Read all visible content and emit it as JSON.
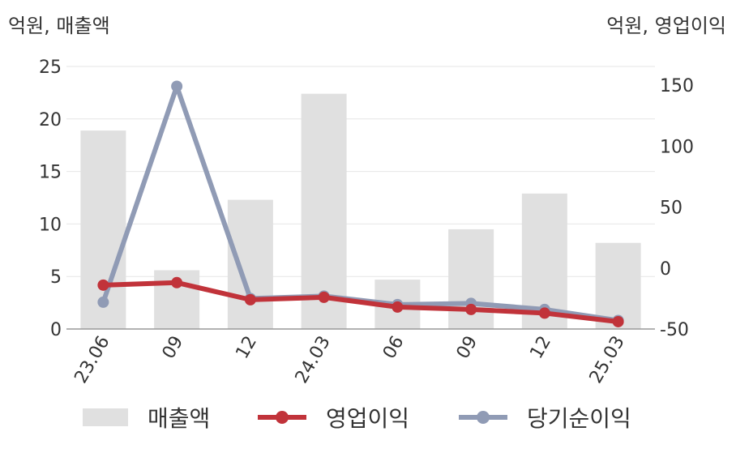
{
  "chart_data": {
    "type": "bar+line",
    "y_left_label": "억원, 매출액",
    "y_right_label": "억원, 영업이익",
    "categories": [
      "23.06",
      "09",
      "12",
      "24.03",
      "06",
      "09",
      "12",
      "25.03"
    ],
    "left_axis": {
      "ylim": [
        0,
        25
      ],
      "ticks": [
        "0",
        "5",
        "10",
        "15",
        "20",
        "25"
      ]
    },
    "right_axis": {
      "ylim": [
        -50,
        150
      ],
      "ticks": [
        "-50",
        "0",
        "50",
        "100",
        "150"
      ]
    },
    "series": [
      {
        "name": "매출액",
        "kind": "bar",
        "axis": "left",
        "color": "#e0e0e0",
        "values": [
          18.9,
          5.6,
          12.3,
          22.4,
          4.7,
          9.5,
          12.9,
          8.2
        ]
      },
      {
        "name": "영업이익",
        "kind": "line",
        "axis": "right",
        "color": "#c1333a",
        "values": [
          -14,
          -12,
          -26,
          -24,
          -32,
          -34,
          -37,
          -44
        ]
      },
      {
        "name": "당기순이익",
        "kind": "line",
        "axis": "right",
        "color": "#909bb5",
        "values": [
          -28,
          149,
          -25,
          -23,
          -30,
          -29,
          -34,
          -43
        ]
      }
    ],
    "grid": true,
    "legend_position": "bottom"
  }
}
